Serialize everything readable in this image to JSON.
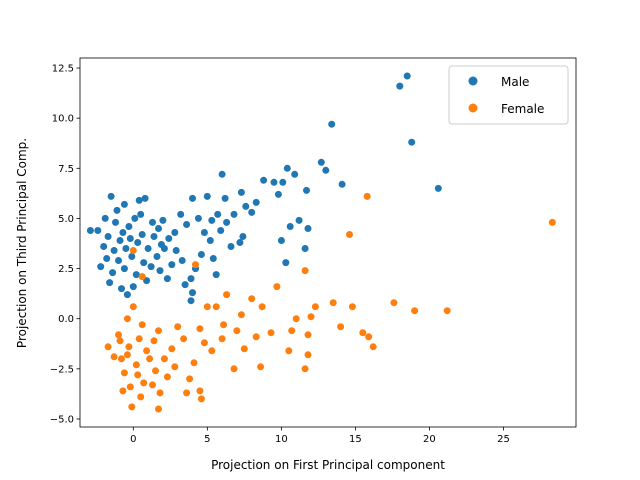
{
  "chart_data": {
    "type": "scatter",
    "title": "",
    "xlabel": "Projection on First Principal component",
    "ylabel": "Projection on Third Principal Comp.",
    "xlim": [
      -3.6,
      29.9
    ],
    "ylim": [
      -5.4,
      13.0
    ],
    "x_ticks": [
      0,
      5,
      10,
      15,
      20,
      25
    ],
    "x_tick_labels": [
      "0",
      "5",
      "10",
      "15",
      "20",
      "25"
    ],
    "y_ticks": [
      -5.0,
      -2.5,
      0.0,
      2.5,
      5.0,
      7.5,
      10.0,
      12.5
    ],
    "y_tick_labels": [
      "−5.0",
      "−2.5",
      "0.0",
      "2.5",
      "5.0",
      "7.5",
      "10.0",
      "12.5"
    ],
    "grid": false,
    "legend_position": "top-right",
    "series": [
      {
        "name": "Male",
        "color": "#1f77b4",
        "points": [
          [
            18.5,
            12.1
          ],
          [
            18.0,
            11.6
          ],
          [
            13.4,
            9.7
          ],
          [
            18.8,
            8.8
          ],
          [
            12.7,
            7.8
          ],
          [
            10.4,
            7.5
          ],
          [
            10.9,
            7.2
          ],
          [
            13.0,
            7.4
          ],
          [
            9.5,
            6.8
          ],
          [
            10.1,
            6.8
          ],
          [
            8.8,
            6.9
          ],
          [
            11.7,
            6.4
          ],
          [
            14.1,
            6.7
          ],
          [
            20.6,
            6.5
          ],
          [
            9.8,
            6.2
          ],
          [
            7.3,
            6.3
          ],
          [
            6.0,
            7.2
          ],
          [
            8.3,
            5.8
          ],
          [
            6.2,
            6.0
          ],
          [
            7.6,
            5.6
          ],
          [
            8.0,
            5.3
          ],
          [
            6.8,
            5.2
          ],
          [
            10.6,
            4.6
          ],
          [
            11.2,
            4.9
          ],
          [
            11.8,
            4.5
          ],
          [
            10.0,
            3.9
          ],
          [
            11.6,
            3.5
          ],
          [
            10.3,
            2.8
          ],
          [
            7.4,
            4.1
          ],
          [
            7.2,
            3.8
          ],
          [
            6.6,
            3.6
          ],
          [
            5.9,
            4.4
          ],
          [
            5.3,
            4.9
          ],
          [
            4.4,
            5.0
          ],
          [
            3.6,
            4.7
          ],
          [
            4.0,
            6.0
          ],
          [
            5.0,
            6.1
          ],
          [
            3.2,
            5.2
          ],
          [
            2.8,
            4.3
          ],
          [
            2.1,
            3.5
          ],
          [
            4.6,
            3.2
          ],
          [
            5.4,
            3.0
          ],
          [
            4.2,
            2.5
          ],
          [
            5.6,
            2.2
          ],
          [
            3.9,
            2.0
          ],
          [
            3.5,
            1.7
          ],
          [
            4.0,
            1.3
          ],
          [
            3.9,
            0.9
          ],
          [
            2.6,
            2.7
          ],
          [
            1.8,
            2.4
          ],
          [
            -1.5,
            6.1
          ],
          [
            -0.6,
            5.7
          ],
          [
            0.4,
            5.9
          ],
          [
            0.8,
            6.0
          ],
          [
            -1.9,
            5.0
          ],
          [
            -2.9,
            4.4
          ],
          [
            -2.4,
            4.4
          ],
          [
            -1.2,
            4.8
          ],
          [
            -0.3,
            4.6
          ],
          [
            0.5,
            5.2
          ],
          [
            1.3,
            4.8
          ],
          [
            2.0,
            4.9
          ],
          [
            -1.7,
            4.1
          ],
          [
            -0.9,
            3.9
          ],
          [
            -0.2,
            4.0
          ],
          [
            0.6,
            4.2
          ],
          [
            1.4,
            4.1
          ],
          [
            -2.0,
            3.6
          ],
          [
            -1.3,
            3.4
          ],
          [
            -0.5,
            3.5
          ],
          [
            0.3,
            3.8
          ],
          [
            1.0,
            3.5
          ],
          [
            1.9,
            3.7
          ],
          [
            -1.8,
            3.0
          ],
          [
            -1.0,
            2.9
          ],
          [
            -0.1,
            3.1
          ],
          [
            0.7,
            2.8
          ],
          [
            1.6,
            3.1
          ],
          [
            -2.2,
            2.6
          ],
          [
            -1.4,
            2.3
          ],
          [
            -0.6,
            2.5
          ],
          [
            0.2,
            2.2
          ],
          [
            1.2,
            2.6
          ],
          [
            -1.6,
            1.8
          ],
          [
            -0.8,
            1.5
          ],
          [
            0.0,
            1.6
          ],
          [
            0.9,
            1.9
          ],
          [
            -0.4,
            1.2
          ],
          [
            -1.1,
            5.4
          ],
          [
            0.1,
            5.0
          ],
          [
            -0.7,
            4.3
          ],
          [
            1.7,
            4.5
          ],
          [
            2.4,
            4.0
          ],
          [
            2.9,
            3.4
          ],
          [
            2.3,
            2.0
          ],
          [
            3.3,
            2.9
          ],
          [
            4.8,
            4.3
          ],
          [
            5.2,
            3.9
          ],
          [
            6.3,
            4.8
          ],
          [
            5.7,
            5.2
          ]
        ]
      },
      {
        "name": "Female",
        "color": "#ff7f0e",
        "points": [
          [
            28.3,
            4.8
          ],
          [
            15.8,
            6.1
          ],
          [
            14.6,
            4.2
          ],
          [
            11.6,
            2.4
          ],
          [
            21.2,
            0.4
          ],
          [
            19.0,
            0.4
          ],
          [
            17.6,
            0.8
          ],
          [
            15.5,
            -0.7
          ],
          [
            15.9,
            -0.9
          ],
          [
            16.2,
            -1.4
          ],
          [
            14.8,
            0.6
          ],
          [
            14.0,
            -0.4
          ],
          [
            13.5,
            0.8
          ],
          [
            12.3,
            0.6
          ],
          [
            12.0,
            0.1
          ],
          [
            11.0,
            0.0
          ],
          [
            11.8,
            -0.8
          ],
          [
            10.7,
            -0.6
          ],
          [
            10.5,
            -1.6
          ],
          [
            11.8,
            -1.8
          ],
          [
            11.6,
            -2.5
          ],
          [
            9.7,
            1.6
          ],
          [
            8.7,
            0.6
          ],
          [
            9.3,
            -0.7
          ],
          [
            8.3,
            -0.9
          ],
          [
            8.6,
            -2.4
          ],
          [
            8.0,
            1.0
          ],
          [
            7.3,
            0.2
          ],
          [
            6.3,
            1.2
          ],
          [
            6.1,
            -0.3
          ],
          [
            6.0,
            -1.0
          ],
          [
            5.6,
            0.6
          ],
          [
            7.0,
            -0.6
          ],
          [
            7.5,
            -1.5
          ],
          [
            6.8,
            -2.5
          ],
          [
            5.3,
            -1.6
          ],
          [
            4.2,
            2.7
          ],
          [
            4.5,
            -0.5
          ],
          [
            4.8,
            -1.2
          ],
          [
            4.1,
            -2.2
          ],
          [
            3.8,
            -3.0
          ],
          [
            4.5,
            -3.6
          ],
          [
            4.6,
            -4.0
          ],
          [
            3.6,
            -3.7
          ],
          [
            3.4,
            -1.0
          ],
          [
            3.0,
            -0.4
          ],
          [
            2.6,
            -1.5
          ],
          [
            2.8,
            -2.4
          ],
          [
            2.3,
            -2.9
          ],
          [
            1.7,
            -0.6
          ],
          [
            1.4,
            -1.1
          ],
          [
            1.1,
            -2.0
          ],
          [
            1.5,
            -2.6
          ],
          [
            1.3,
            -3.3
          ],
          [
            1.8,
            -3.7
          ],
          [
            0.0,
            3.4
          ],
          [
            0.6,
            2.1
          ],
          [
            0.0,
            0.6
          ],
          [
            -0.4,
            0.0
          ],
          [
            0.6,
            -0.3
          ],
          [
            -1.0,
            -0.8
          ],
          [
            -0.3,
            -1.4
          ],
          [
            0.4,
            -1.0
          ],
          [
            -1.7,
            -1.4
          ],
          [
            -0.8,
            -2.0
          ],
          [
            0.2,
            -2.3
          ],
          [
            0.9,
            -1.6
          ],
          [
            -0.6,
            -2.7
          ],
          [
            0.7,
            -3.2
          ],
          [
            -0.2,
            -3.4
          ],
          [
            0.5,
            -3.9
          ],
          [
            -0.1,
            -4.4
          ],
          [
            1.7,
            -4.5
          ],
          [
            -0.9,
            -1.1
          ],
          [
            -1.3,
            -1.9
          ],
          [
            -0.4,
            -1.8
          ],
          [
            0.3,
            -2.8
          ],
          [
            -0.7,
            -3.6
          ],
          [
            2.1,
            -2.0
          ],
          [
            5.0,
            0.6
          ]
        ]
      }
    ]
  }
}
